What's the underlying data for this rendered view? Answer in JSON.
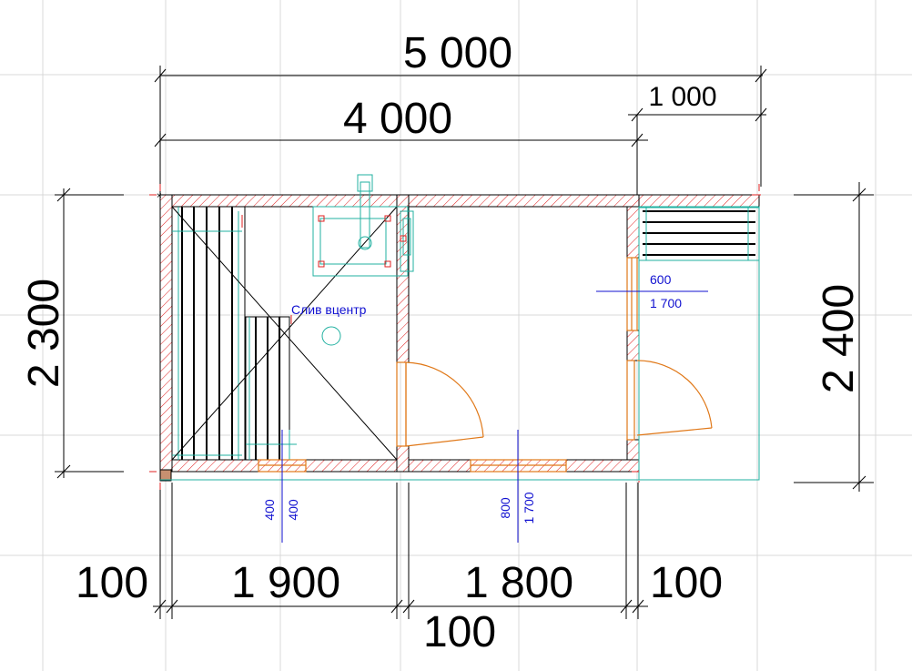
{
  "dimensions": {
    "overall_width": "5 000",
    "inner_width": "4 000",
    "porch_width": "1 000",
    "left_height": "2 300",
    "right_height": "2 400",
    "bottom_left_wall": "100",
    "bottom_room1": "1 900",
    "bottom_room2": "1 800",
    "bottom_right_wall": "100",
    "bottom_center_wall": "100"
  },
  "annotations": {
    "drain_label": "Слив вцентр",
    "window_right_width": "600",
    "window_right_height": "1 700",
    "window_bottom_left_a": "400",
    "window_bottom_left_b": "400",
    "window_bottom_mid_a": "800",
    "window_bottom_mid_b": "1 700"
  },
  "colors": {
    "dimension": "#000000",
    "wall_hatch": "#e02020",
    "fixtures": "#20b0a0",
    "doors": "#e07818",
    "annotation_text": "#1010d0",
    "grid": "#d8d8d8"
  }
}
